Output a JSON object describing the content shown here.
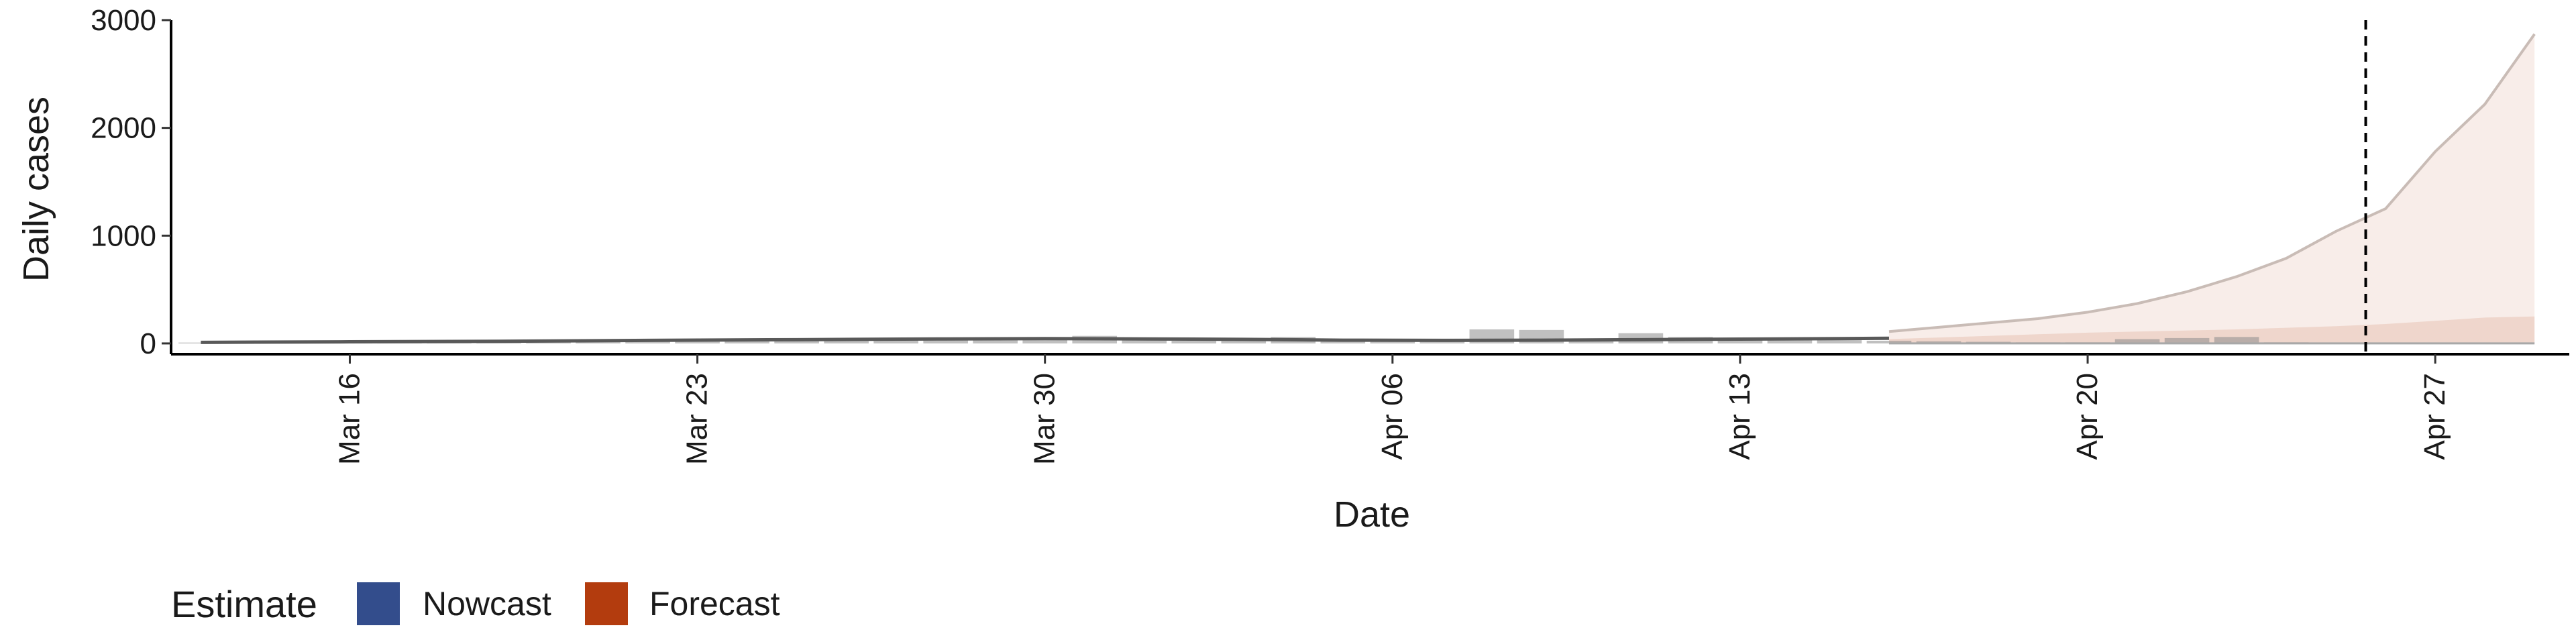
{
  "chart_data": {
    "type": "line",
    "xlabel": "Date",
    "ylabel": "Daily cases",
    "ylim": [
      -100,
      3000
    ],
    "yticks": [
      0,
      1000,
      2000,
      3000
    ],
    "x_ticks": [
      {
        "day": 16,
        "label": "Mar 16"
      },
      {
        "day": 23,
        "label": "Mar 23"
      },
      {
        "day": 30,
        "label": "Mar 30"
      },
      {
        "day": 37,
        "label": "Apr 06"
      },
      {
        "day": 44,
        "label": "Apr 13"
      },
      {
        "day": 51,
        "label": "Apr 20"
      },
      {
        "day": 58,
        "label": "Apr 27"
      }
    ],
    "xlim": [
      12.4,
      60.7
    ],
    "start_date": "Mar 13",
    "forecast_date_day": 56.6,
    "reported_cases": [
      {
        "day": 13,
        "value": 8
      },
      {
        "day": 14,
        "value": 10
      },
      {
        "day": 15,
        "value": 12
      },
      {
        "day": 16,
        "value": 14
      },
      {
        "day": 17,
        "value": 18
      },
      {
        "day": 18,
        "value": 20
      },
      {
        "day": 19,
        "value": 22
      },
      {
        "day": 20,
        "value": 25
      },
      {
        "day": 21,
        "value": 28
      },
      {
        "day": 22,
        "value": 30
      },
      {
        "day": 23,
        "value": 35
      },
      {
        "day": 24,
        "value": 38
      },
      {
        "day": 25,
        "value": 30
      },
      {
        "day": 26,
        "value": 25
      },
      {
        "day": 27,
        "value": 30
      },
      {
        "day": 28,
        "value": 35
      },
      {
        "day": 29,
        "value": 30
      },
      {
        "day": 30,
        "value": 45
      },
      {
        "day": 31,
        "value": 70
      },
      {
        "day": 32,
        "value": 40
      },
      {
        "day": 33,
        "value": 25
      },
      {
        "day": 34,
        "value": 35
      },
      {
        "day": 35,
        "value": 60
      },
      {
        "day": 36,
        "value": 40
      },
      {
        "day": 37,
        "value": 20
      },
      {
        "day": 38,
        "value": 25
      },
      {
        "day": 39,
        "value": 130
      },
      {
        "day": 40,
        "value": 125
      },
      {
        "day": 41,
        "value": 40
      },
      {
        "day": 42,
        "value": 95
      },
      {
        "day": 43,
        "value": 60
      },
      {
        "day": 44,
        "value": 40
      },
      {
        "day": 45,
        "value": 35
      },
      {
        "day": 46,
        "value": 30
      },
      {
        "day": 47,
        "value": 25
      },
      {
        "day": 48,
        "value": 20
      },
      {
        "day": 49,
        "value": 15
      },
      {
        "day": 50,
        "value": 10
      },
      {
        "day": 51,
        "value": 10
      },
      {
        "day": 52,
        "value": 40
      },
      {
        "day": 53,
        "value": 50
      },
      {
        "day": 54,
        "value": 60
      },
      {
        "day": 55,
        "value": 10
      }
    ],
    "series": [
      {
        "name": "Nowcast",
        "color": "#334d8c",
        "points": [
          {
            "day": 13,
            "median": 10
          },
          {
            "day": 16,
            "median": 15
          },
          {
            "day": 19,
            "median": 20
          },
          {
            "day": 22,
            "median": 28
          },
          {
            "day": 25,
            "median": 35
          },
          {
            "day": 28,
            "median": 42
          },
          {
            "day": 30,
            "median": 45
          },
          {
            "day": 32,
            "median": 42
          },
          {
            "day": 34,
            "median": 38
          },
          {
            "day": 36,
            "median": 30
          },
          {
            "day": 38,
            "median": 28
          },
          {
            "day": 40,
            "median": 30
          },
          {
            "day": 42,
            "median": 35
          },
          {
            "day": 44,
            "median": 40
          },
          {
            "day": 46,
            "median": 45
          },
          {
            "day": 47,
            "median": 48
          }
        ]
      },
      {
        "name": "Forecast",
        "color": "#b33c0e",
        "points": [
          {
            "day": 47,
            "upper": 110,
            "inner": 40
          },
          {
            "day": 48,
            "upper": 150,
            "inner": 55
          },
          {
            "day": 49,
            "upper": 190,
            "inner": 70
          },
          {
            "day": 50,
            "upper": 230,
            "inner": 85
          },
          {
            "day": 51,
            "upper": 290,
            "inner": 100
          },
          {
            "day": 52,
            "upper": 370,
            "inner": 110
          },
          {
            "day": 53,
            "upper": 480,
            "inner": 120
          },
          {
            "day": 54,
            "upper": 620,
            "inner": 130
          },
          {
            "day": 55,
            "upper": 790,
            "inner": 145
          },
          {
            "day": 56,
            "upper": 1040,
            "inner": 160
          },
          {
            "day": 57,
            "upper": 1250,
            "inner": 180
          },
          {
            "day": 58,
            "upper": 1780,
            "inner": 210
          },
          {
            "day": 59,
            "upper": 2220,
            "inner": 240
          },
          {
            "day": 60,
            "upper": 2870,
            "inner": 250
          }
        ]
      }
    ],
    "legend": {
      "title": "Estimate",
      "position": "bottom-left",
      "items": [
        {
          "label": "Nowcast",
          "color": "#334d8c"
        },
        {
          "label": "Forecast",
          "color": "#b33c0e"
        }
      ]
    }
  }
}
